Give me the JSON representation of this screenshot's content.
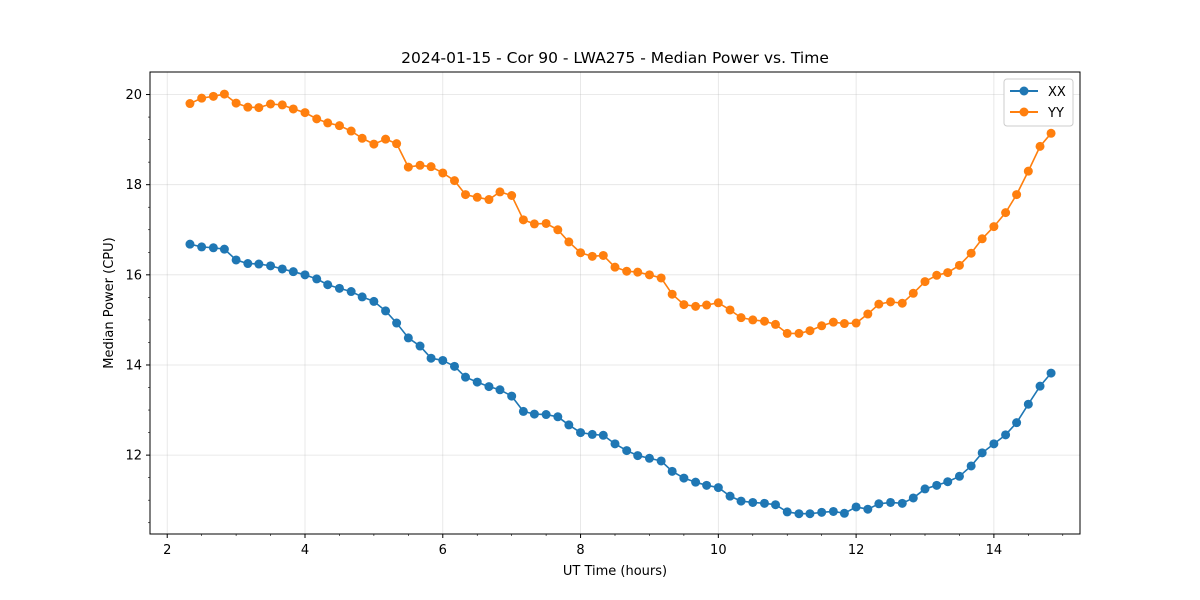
{
  "chart_data": {
    "type": "line",
    "title": "2024-01-15 - Cor 90 - LWA275 - Median Power vs. Time",
    "xlabel": "UT Time (hours)",
    "ylabel": "Median Power (CPU)",
    "xlim": [
      1.75,
      15.25
    ],
    "ylim": [
      10.25,
      20.5
    ],
    "xticks": [
      2,
      4,
      6,
      8,
      10,
      12,
      14
    ],
    "yticks": [
      12,
      14,
      16,
      18,
      20
    ],
    "grid": true,
    "legend_position": "top-right",
    "x": [
      2.33,
      2.5,
      2.67,
      2.83,
      3.0,
      3.17,
      3.33,
      3.5,
      3.67,
      3.83,
      4.0,
      4.17,
      4.33,
      4.5,
      4.67,
      4.83,
      5.0,
      5.17,
      5.33,
      5.5,
      5.67,
      5.83,
      6.0,
      6.17,
      6.33,
      6.5,
      6.67,
      6.83,
      7.0,
      7.17,
      7.33,
      7.5,
      7.67,
      7.83,
      8.0,
      8.17,
      8.33,
      8.5,
      8.67,
      8.83,
      9.0,
      9.17,
      9.33,
      9.5,
      9.67,
      9.83,
      10.0,
      10.17,
      10.33,
      10.5,
      10.67,
      10.83,
      11.0,
      11.17,
      11.33,
      11.5,
      11.67,
      11.83,
      12.0,
      12.17,
      12.33,
      12.5,
      12.67,
      12.83,
      13.0,
      13.17,
      13.33,
      13.5,
      13.67,
      13.83,
      14.0,
      14.17,
      14.33,
      14.5,
      14.67,
      14.83
    ],
    "series": [
      {
        "name": "XX",
        "color": "#1f77b4",
        "values": [
          16.68,
          16.62,
          16.6,
          16.57,
          16.33,
          16.25,
          16.24,
          16.2,
          16.13,
          16.07,
          16.0,
          15.91,
          15.78,
          15.7,
          15.63,
          15.51,
          15.41,
          15.2,
          14.93,
          14.6,
          14.42,
          14.15,
          14.1,
          13.97,
          13.73,
          13.62,
          13.52,
          13.45,
          13.31,
          12.97,
          12.91,
          12.9,
          12.85,
          12.67,
          12.5,
          12.46,
          12.44,
          12.25,
          12.1,
          11.99,
          11.93,
          11.87,
          11.64,
          11.49,
          11.4,
          11.33,
          11.28,
          11.09,
          10.98,
          10.95,
          10.93,
          10.9,
          10.74,
          10.7,
          10.7,
          10.73,
          10.75,
          10.71,
          10.85,
          10.8,
          10.92,
          10.95,
          10.93,
          11.05,
          11.25,
          11.33,
          11.41,
          11.53,
          11.76,
          12.05,
          12.25,
          12.45,
          12.72,
          13.13,
          13.53,
          13.82
        ]
      },
      {
        "name": "YY",
        "color": "#ff7f0e",
        "values": [
          19.8,
          19.92,
          19.96,
          20.01,
          19.81,
          19.72,
          19.71,
          19.79,
          19.77,
          19.68,
          19.6,
          19.46,
          19.37,
          19.31,
          19.19,
          19.03,
          18.9,
          19.01,
          18.91,
          18.39,
          18.43,
          18.4,
          18.26,
          18.09,
          17.78,
          17.72,
          17.67,
          17.84,
          17.76,
          17.22,
          17.13,
          17.14,
          17.0,
          16.73,
          16.49,
          16.41,
          16.43,
          16.17,
          16.08,
          16.06,
          16.0,
          15.93,
          15.57,
          15.34,
          15.3,
          15.33,
          15.38,
          15.22,
          15.05,
          15.0,
          14.97,
          14.9,
          14.7,
          14.7,
          14.76,
          14.87,
          14.95,
          14.92,
          14.93,
          15.13,
          15.35,
          15.4,
          15.37,
          15.59,
          15.85,
          15.99,
          16.05,
          16.21,
          16.48,
          16.8,
          17.07,
          17.38,
          17.78,
          18.3,
          18.85,
          19.14
        ]
      }
    ]
  }
}
